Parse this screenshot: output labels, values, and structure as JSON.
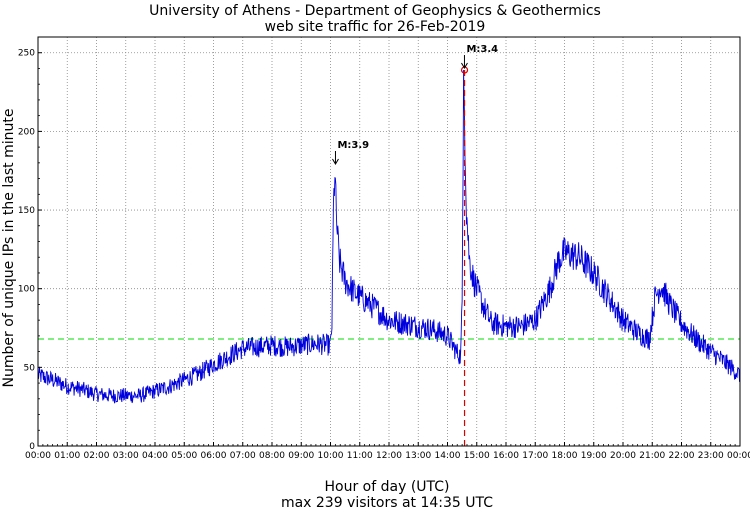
{
  "chart_data": {
    "type": "line",
    "title": "University of Athens - Department of Geophysics & Geothermics",
    "subtitle": "web site traffic for 26-Feb-2019",
    "xlabel": "Hour of day (UTC)",
    "footer": "max 239 visitors at 14:35 UTC",
    "ylabel": "Number of unique IPs in the last minute",
    "xlim": [
      0,
      24
    ],
    "ylim": [
      0,
      260
    ],
    "grid": true,
    "x_ticks": [
      "00:00",
      "01:00",
      "02:00",
      "03:00",
      "04:00",
      "05:00",
      "06:00",
      "07:00",
      "08:00",
      "09:00",
      "10:00",
      "11:00",
      "12:00",
      "13:00",
      "14:00",
      "15:00",
      "16:00",
      "17:00",
      "18:00",
      "19:00",
      "20:00",
      "21:00",
      "22:00",
      "23:00",
      "00:00"
    ],
    "y_ticks": [
      0,
      50,
      100,
      150,
      200,
      250
    ],
    "series": [
      {
        "color": "#0000dd",
        "x": [
          0,
          0.5,
          1,
          1.5,
          2,
          2.5,
          3,
          3.5,
          4,
          4.5,
          5,
          5.5,
          6,
          6.5,
          7,
          7.5,
          8,
          8.5,
          9,
          9.5,
          10,
          10.05,
          10.1,
          10.15,
          10.2,
          10.3,
          10.5,
          10.8,
          11,
          11.5,
          12,
          12.5,
          13,
          13.5,
          14,
          14.3,
          14.45,
          14.5,
          14.55,
          14.58,
          14.65,
          14.75,
          14.9,
          15.2,
          15.5,
          16,
          16.5,
          17,
          17.5,
          17.8,
          18,
          18.5,
          19,
          19.5,
          20,
          20.5,
          20.9,
          21.1,
          21.3,
          21.6,
          22,
          22.5,
          23,
          23.5,
          24
        ],
        "y": [
          45,
          42,
          38,
          36,
          33,
          32,
          32,
          32,
          35,
          38,
          42,
          46,
          52,
          57,
          62,
          63,
          64,
          63,
          64,
          65,
          64,
          78,
          150,
          175,
          145,
          118,
          105,
          98,
          95,
          88,
          80,
          78,
          76,
          74,
          70,
          60,
          57,
          90,
          239,
          210,
          150,
          118,
          105,
          90,
          78,
          76,
          76,
          80,
          100,
          118,
          123,
          120,
          110,
          95,
          80,
          72,
          68,
          95,
          102,
          90,
          78,
          68,
          60,
          53,
          45
        ]
      }
    ],
    "mean_line": {
      "y": 68,
      "color": "#00dd00"
    },
    "max_marker": {
      "x": 14.583,
      "y": 239,
      "color": "#dd0000"
    },
    "annotations": [
      {
        "text": "M:3.9",
        "x": 10.17,
        "y": 178
      },
      {
        "text": "M:3.4",
        "x": 14.58,
        "y": 239
      }
    ]
  }
}
